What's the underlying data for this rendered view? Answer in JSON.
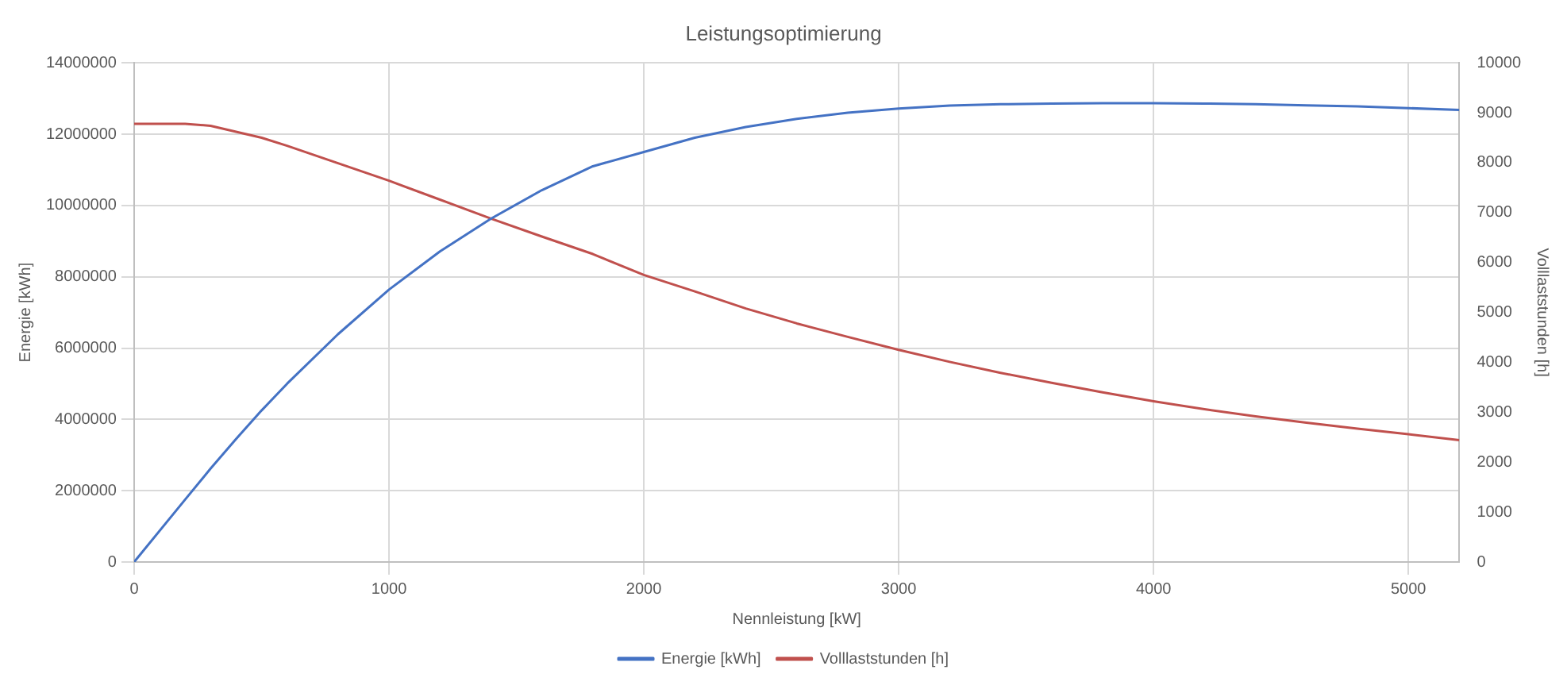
{
  "chart_data": {
    "type": "line",
    "title": "Leistungsoptimierung",
    "xlabel": "Nennleistung [kW]",
    "ylabel": "Energie [kWh]",
    "y2label": "Volllaststunden [h]",
    "x": [
      0,
      200,
      300,
      400,
      500,
      600,
      800,
      1000,
      1200,
      1400,
      1600,
      1800,
      2000,
      2200,
      2400,
      2600,
      2800,
      3000,
      3200,
      3400,
      3600,
      3800,
      4000,
      4200,
      4400,
      4600,
      4800,
      5000,
      5200
    ],
    "series": [
      {
        "name": "Energie [kWh]",
        "color": "#4472c4",
        "values": [
          0,
          1750000,
          2620000,
          3450000,
          4250000,
          5000000,
          6390000,
          7640000,
          8710000,
          9630000,
          10430000,
          11100000,
          11500000,
          11900000,
          12200000,
          12430000,
          12600000,
          12720000,
          12800000,
          12840000,
          12860000,
          12870000,
          12870000,
          12860000,
          12840000,
          12810000,
          12780000,
          12730000,
          12680000
        ]
      },
      {
        "name": "Volllaststunden [h]",
        "color": "#c0504d",
        "axis": "y2",
        "values": [
          8780,
          8780,
          8740,
          8620,
          8500,
          8340,
          7990,
          7640,
          7260,
          6880,
          6520,
          6170,
          5750,
          5420,
          5080,
          4780,
          4510,
          4250,
          4010,
          3790,
          3590,
          3400,
          3220,
          3060,
          2920,
          2790,
          2670,
          2560,
          2440
        ]
      }
    ],
    "xlim": [
      0,
      5200
    ],
    "xticks": [
      0,
      1000,
      2000,
      3000,
      4000,
      5000
    ],
    "ylim": [
      0,
      14000000
    ],
    "yticks": [
      0,
      2000000,
      4000000,
      6000000,
      8000000,
      10000000,
      12000000,
      14000000
    ],
    "y2lim": [
      0,
      10000
    ],
    "y2ticks": [
      0,
      1000,
      2000,
      3000,
      4000,
      5000,
      6000,
      7000,
      8000,
      9000,
      10000
    ],
    "grid": true,
    "legend": "bottom",
    "marker": "none",
    "line_style": "solid"
  }
}
